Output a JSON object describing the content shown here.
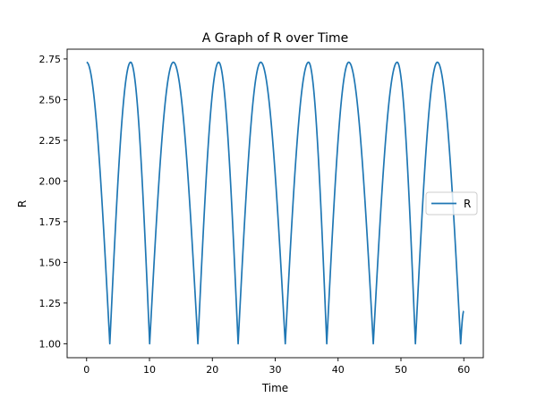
{
  "chart_data": {
    "type": "line",
    "title": "A Graph of R over Time",
    "xlabel": "Time",
    "ylabel": "R",
    "xlim": [
      -3.1,
      63.1
    ],
    "ylim": [
      0.914,
      2.81
    ],
    "xticks": [
      0,
      10,
      20,
      30,
      40,
      50,
      60
    ],
    "xtick_labels": [
      "0",
      "10",
      "20",
      "30",
      "40",
      "50",
      "60"
    ],
    "yticks": [
      1.0,
      1.25,
      1.5,
      1.75,
      2.0,
      2.25,
      2.5,
      2.75
    ],
    "ytick_labels": [
      "1.00",
      "1.25",
      "1.50",
      "1.75",
      "2.00",
      "2.25",
      "2.50",
      "2.75"
    ],
    "grid": false,
    "legend_position": "center-right",
    "series": [
      {
        "name": "R",
        "color": "#1f77b4",
        "x": [
          0,
          3.69,
          7.0,
          10.03,
          13.8,
          17.7,
          21.0,
          24.1,
          27.7,
          31.6,
          35.3,
          38.2,
          41.7,
          45.6,
          49.4,
          52.3,
          55.8,
          59.5,
          60
        ],
        "y": [
          2.73,
          1.0,
          2.73,
          1.0,
          2.73,
          1.0,
          2.73,
          1.0,
          2.73,
          1.0,
          2.73,
          1.0,
          2.73,
          1.0,
          2.73,
          1.0,
          2.73,
          1.0,
          1.2
        ]
      }
    ]
  }
}
